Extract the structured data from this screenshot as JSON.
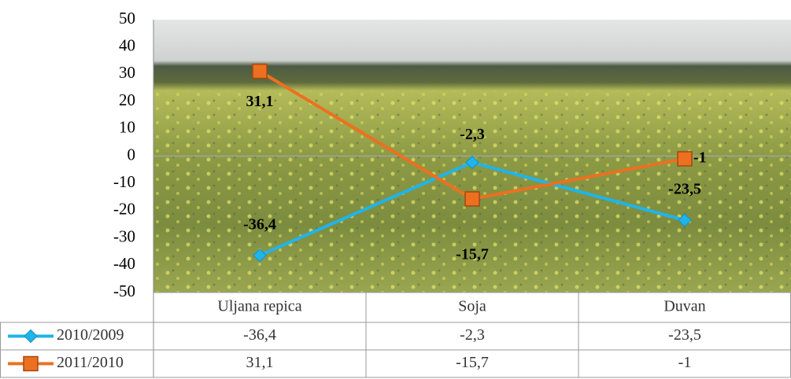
{
  "chart_data": {
    "type": "line",
    "categories": [
      "Uljana repica",
      "Soja",
      "Duvan"
    ],
    "series": [
      {
        "name": "2010/2009",
        "color": "#1fb4ea",
        "marker": "diamond",
        "values": [
          -36.4,
          -2.3,
          -23.5
        ],
        "value_labels": [
          "-36,4",
          "-2,3",
          "-23,5"
        ]
      },
      {
        "name": "2011/2010",
        "color": "#ec7020",
        "marker": "square",
        "values": [
          31.1,
          -15.7,
          -1
        ],
        "value_labels": [
          "31,1",
          "-15,7",
          "-1"
        ]
      }
    ],
    "ylim": [
      -50,
      50
    ],
    "yticks": [
      -50,
      -40,
      -30,
      -20,
      -10,
      0,
      10,
      20,
      30,
      40,
      50
    ],
    "data_table": true
  }
}
